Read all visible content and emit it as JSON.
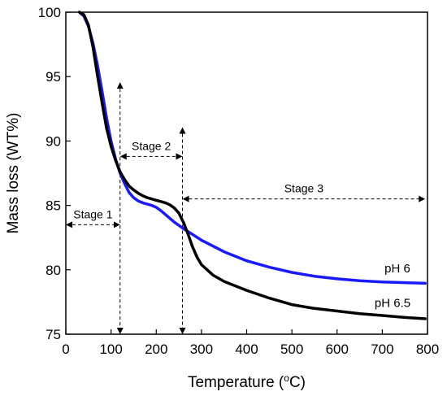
{
  "chart_data": {
    "type": "line",
    "xlabel": "Temperature (°C)",
    "xlabel_prefix": "Temperature (",
    "xlabel_sup": "o",
    "xlabel_suffix": "C)",
    "ylabel": "Mass loss (WT%)",
    "xlim": [
      0,
      800
    ],
    "ylim": [
      75,
      100
    ],
    "xticks": [
      0,
      100,
      200,
      300,
      400,
      500,
      600,
      700,
      800
    ],
    "yticks": [
      75,
      80,
      85,
      90,
      95,
      100
    ],
    "grid": false,
    "series": [
      {
        "name": "pH 6",
        "color": "#1a1aff",
        "points": [
          [
            30,
            100
          ],
          [
            40,
            99.7
          ],
          [
            50,
            98.9
          ],
          [
            60,
            97.6
          ],
          [
            70,
            95.9
          ],
          [
            80,
            93.9
          ],
          [
            90,
            91.8
          ],
          [
            100,
            90.0
          ],
          [
            110,
            88.6
          ],
          [
            120,
            87.5
          ],
          [
            130,
            86.7
          ],
          [
            140,
            86.0
          ],
          [
            150,
            85.6
          ],
          [
            160,
            85.35
          ],
          [
            170,
            85.2
          ],
          [
            180,
            85.1
          ],
          [
            190,
            85.0
          ],
          [
            200,
            84.85
          ],
          [
            210,
            84.6
          ],
          [
            220,
            84.3
          ],
          [
            230,
            84.0
          ],
          [
            240,
            83.7
          ],
          [
            260,
            83.2
          ],
          [
            280,
            82.75
          ],
          [
            300,
            82.3
          ],
          [
            350,
            81.4
          ],
          [
            400,
            80.7
          ],
          [
            450,
            80.2
          ],
          [
            500,
            79.8
          ],
          [
            550,
            79.5
          ],
          [
            600,
            79.3
          ],
          [
            650,
            79.15
          ],
          [
            700,
            79.05
          ],
          [
            750,
            79.0
          ],
          [
            795,
            78.95
          ]
        ]
      },
      {
        "name": "pH 6.5",
        "color": "#000000",
        "points": [
          [
            30,
            100
          ],
          [
            40,
            99.8
          ],
          [
            50,
            99.0
          ],
          [
            60,
            97.3
          ],
          [
            70,
            95.1
          ],
          [
            80,
            93.0
          ],
          [
            90,
            91.0
          ],
          [
            100,
            89.6
          ],
          [
            110,
            88.5
          ],
          [
            120,
            87.6
          ],
          [
            130,
            87.0
          ],
          [
            140,
            86.5
          ],
          [
            150,
            86.2
          ],
          [
            160,
            85.95
          ],
          [
            170,
            85.75
          ],
          [
            180,
            85.6
          ],
          [
            190,
            85.5
          ],
          [
            200,
            85.4
          ],
          [
            210,
            85.3
          ],
          [
            220,
            85.2
          ],
          [
            230,
            85.05
          ],
          [
            240,
            84.8
          ],
          [
            250,
            84.4
          ],
          [
            260,
            83.7
          ],
          [
            270,
            82.8
          ],
          [
            280,
            81.8
          ],
          [
            290,
            81.0
          ],
          [
            300,
            80.4
          ],
          [
            325,
            79.6
          ],
          [
            350,
            79.1
          ],
          [
            400,
            78.4
          ],
          [
            450,
            77.8
          ],
          [
            500,
            77.3
          ],
          [
            550,
            77.0
          ],
          [
            600,
            76.8
          ],
          [
            650,
            76.6
          ],
          [
            700,
            76.45
          ],
          [
            750,
            76.3
          ],
          [
            795,
            76.2
          ]
        ]
      }
    ],
    "annotations": [
      {
        "text": "Stage 1",
        "x1": 0,
        "x2": 120,
        "y": 83.5
      },
      {
        "text": "Stage 2",
        "x1": 120,
        "x2": 258,
        "y": 88.8
      },
      {
        "text": "Stage 3",
        "x1": 258,
        "x2": 795,
        "y": 85.5
      }
    ],
    "dividers": [
      {
        "x": 120,
        "y_top": 94.5,
        "y_bottom": 75
      },
      {
        "x": 258,
        "y_top": 91.0,
        "y_bottom": 75
      }
    ]
  }
}
